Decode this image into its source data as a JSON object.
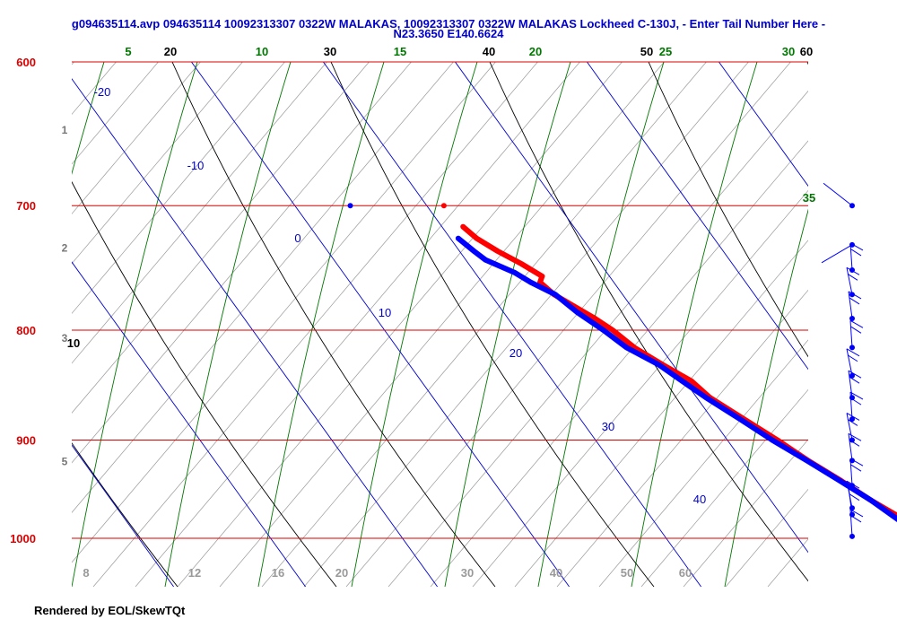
{
  "header": {
    "title_line1": "g094635114.avp 094635114 10092313307 0322W MALAKAS, 10092313307 0322W MALAKAS Lockheed C-130J, - Enter Tail Number Here -",
    "title_line2": "N23.3650 E140.6624"
  },
  "footer": {
    "credit": "Rendered by EOL/SkewTQt"
  },
  "colors": {
    "isobar": "#dd0000",
    "isotherm": "#0000cc",
    "dry_adiabat": "#000000",
    "moist_adiabat": "#007700",
    "mixing_ratio": "#999999",
    "temperature": "#ff0000",
    "dewpoint": "#0000ff"
  },
  "chart_data": {
    "type": "skew-t",
    "title": "g094635114.avp 094635114 10092313307 0322W MALAKAS, 10092313307 0322W MALAKAS Lockheed C-130J, - Enter Tail Number Here - N23.3650 E140.6624",
    "pressure_range_hPa": [
      1000,
      600
    ],
    "pressure_levels": [
      {
        "p": 600,
        "label": "600"
      },
      {
        "p": 700,
        "label": "700"
      },
      {
        "p": 800,
        "label": "800"
      },
      {
        "p": 900,
        "label": "900"
      },
      {
        "p": 1000,
        "label": "1000"
      }
    ],
    "height_labels_km": [
      {
        "p": 645,
        "label": "1"
      },
      {
        "p": 732,
        "label": "2"
      },
      {
        "p": 806,
        "label": "3"
      },
      {
        "p": 920,
        "label": "5"
      }
    ],
    "isotherms_C": [
      {
        "t": -20,
        "label": "-20"
      },
      {
        "t": -10,
        "label": "-10"
      },
      {
        "t": 0,
        "label": "0"
      },
      {
        "t": 10,
        "label": "10"
      },
      {
        "t": 20,
        "label": "20"
      },
      {
        "t": 30,
        "label": "30"
      },
      {
        "t": 40,
        "label": "40"
      }
    ],
    "dry_adiabats_C": [
      {
        "label": "10"
      },
      {
        "label": "20"
      },
      {
        "label": "30"
      },
      {
        "label": "40"
      },
      {
        "label": "50"
      },
      {
        "label": "60"
      }
    ],
    "moist_adiabats_C": [
      {
        "label": "5"
      },
      {
        "label": "10"
      },
      {
        "label": "15"
      },
      {
        "label": "20"
      },
      {
        "label": "25"
      },
      {
        "label": "30"
      },
      {
        "label": "35"
      }
    ],
    "mixing_ratio_labels": [
      "8",
      "12",
      "16",
      "20",
      "30",
      "40",
      "50",
      "60"
    ],
    "temperature_profile": [
      {
        "p": 978,
        "t": 28.9
      },
      {
        "p": 960,
        "t": 27.6
      },
      {
        "p": 940,
        "t": 26.4
      },
      {
        "p": 920,
        "t": 25.0
      },
      {
        "p": 900,
        "t": 23.8
      },
      {
        "p": 880,
        "t": 22.4
      },
      {
        "p": 860,
        "t": 21.0
      },
      {
        "p": 845,
        "t": 20.5
      },
      {
        "p": 830,
        "t": 19.2
      },
      {
        "p": 815,
        "t": 18.0
      },
      {
        "p": 800,
        "t": 17.3
      },
      {
        "p": 790,
        "t": 16.6
      },
      {
        "p": 780,
        "t": 15.7
      },
      {
        "p": 770,
        "t": 14.8
      },
      {
        "p": 760,
        "t": 14.4
      },
      {
        "p": 755,
        "t": 14.9
      },
      {
        "p": 745,
        "t": 14.0
      },
      {
        "p": 735,
        "t": 12.9
      },
      {
        "p": 725,
        "t": 12.0
      },
      {
        "p": 716,
        "t": 11.6
      }
    ],
    "dewpoint_profile": [
      {
        "p": 980,
        "t": 28.6
      },
      {
        "p": 960,
        "t": 27.6
      },
      {
        "p": 940,
        "t": 26.3
      },
      {
        "p": 920,
        "t": 24.9
      },
      {
        "p": 900,
        "t": 23.4
      },
      {
        "p": 880,
        "t": 22.1
      },
      {
        "p": 860,
        "t": 20.7
      },
      {
        "p": 845,
        "t": 19.8
      },
      {
        "p": 830,
        "t": 18.9
      },
      {
        "p": 815,
        "t": 17.4
      },
      {
        "p": 800,
        "t": 16.6
      },
      {
        "p": 785,
        "t": 15.6
      },
      {
        "p": 770,
        "t": 14.9
      },
      {
        "p": 760,
        "t": 13.7
      },
      {
        "p": 752,
        "t": 13.0
      },
      {
        "p": 742,
        "t": 11.5
      },
      {
        "p": 735,
        "t": 11.1
      },
      {
        "p": 725,
        "t": 10.6
      }
    ],
    "isolated_points": [
      {
        "series": "dewpoint",
        "p": 700,
        "t": 4.2
      },
      {
        "series": "temperature",
        "p": 700,
        "t": 11.3
      }
    ],
    "wind_barbs_hPa": [
      700,
      730,
      750,
      770,
      790,
      815,
      840,
      860,
      880,
      900,
      920,
      945,
      968,
      975,
      998
    ]
  }
}
